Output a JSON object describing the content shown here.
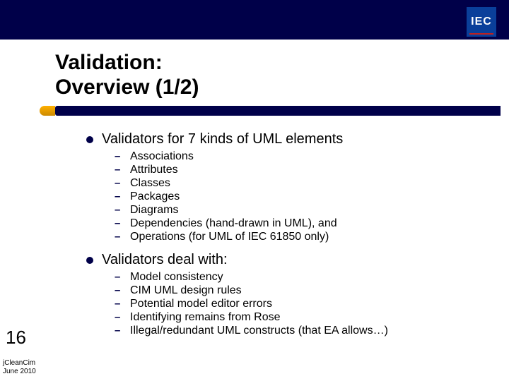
{
  "colors": {
    "navy": "#000049",
    "logo_blue": "#0a3f9a",
    "logo_red": "#c02020",
    "notch_gold_top": "#ffb000",
    "notch_gold_bot": "#cc8a00",
    "background": "#ffffff",
    "text": "#000000"
  },
  "logo": {
    "text": "IEC"
  },
  "title": {
    "line1": "Validation:",
    "line2": "Overview (1/2)"
  },
  "bullets": [
    {
      "text": "Validators for 7 kinds of UML elements",
      "sub": [
        "Associations",
        "Attributes",
        "Classes",
        "Packages",
        "Diagrams",
        "Dependencies (hand-drawn in UML), and",
        "Operations (for UML of IEC 61850 only)"
      ]
    },
    {
      "text": "Validators deal with:",
      "sub": [
        "Model consistency",
        "CIM UML design rules",
        "Potential model editor errors",
        "Identifying remains from Rose",
        "Illegal/redundant UML constructs (that EA allows…)"
      ]
    }
  ],
  "page_number": "16",
  "footer": {
    "line1": "jCleanCim",
    "line2": "June 2010"
  },
  "typography": {
    "title_fontsize": 30,
    "l1_fontsize": 20,
    "l2_fontsize": 16,
    "pagenum_fontsize": 26,
    "footer_fontsize": 10
  }
}
